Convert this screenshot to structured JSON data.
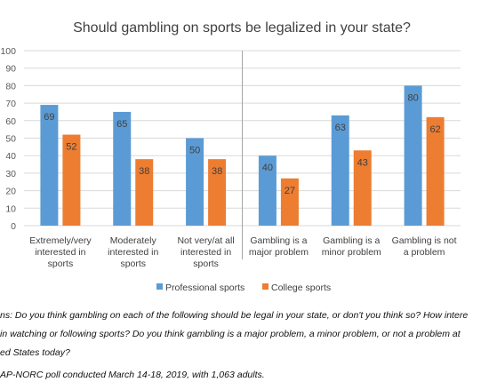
{
  "chart_data": {
    "type": "bar",
    "title": "Should gambling on sports be legalized in your state?",
    "categories": [
      [
        "Extremely/very",
        "interested in",
        "sports"
      ],
      [
        "Moderately",
        "interested in",
        "sports"
      ],
      [
        "Not very/at all",
        "interested in",
        "sports"
      ],
      [
        "Gambling is a",
        "major problem"
      ],
      [
        "Gambling is a",
        "minor problem"
      ],
      [
        "Gambling is not",
        "a problem"
      ]
    ],
    "series": [
      {
        "name": "Professional sports",
        "color": "#5B9BD5",
        "values": [
          69,
          65,
          50,
          40,
          63,
          80
        ]
      },
      {
        "name": "College sports",
        "color": "#ED7D31",
        "values": [
          52,
          38,
          38,
          27,
          43,
          62
        ]
      }
    ],
    "ylim": [
      0,
      100
    ],
    "yticks": [
      0,
      10,
      20,
      30,
      40,
      50,
      60,
      70,
      80,
      90,
      100
    ],
    "grid": true,
    "legend_position": "bottom",
    "group_divider_after_category": 3,
    "xlabel": "",
    "ylabel": ""
  },
  "notes": {
    "line1": "ns: Do you think gambling on each of the following should be legal in your state, or don't you think so? How intere",
    "line2": "in watching or following sports? Do you think gambling is a major problem, a minor problem, or not a problem at",
    "line3": "ed States today?",
    "source": "AP-NORC poll conducted March 14-18, 2019, with 1,063 adults."
  }
}
